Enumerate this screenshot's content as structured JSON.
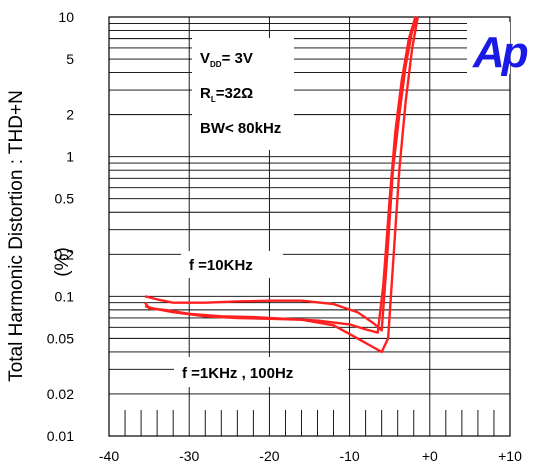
{
  "chart_data": {
    "type": "line",
    "title": "",
    "ylabel": "Total Harmonic Distortion : THD+N",
    "ylabel_unit": "(%)",
    "y_scale": "log",
    "ylim": [
      0.01,
      10
    ],
    "xlim": [
      -40,
      10
    ],
    "x_ticks": [
      {
        "value": -40,
        "label": "-40"
      },
      {
        "value": -30,
        "label": "-30"
      },
      {
        "value": -20,
        "label": "-20"
      },
      {
        "value": -10,
        "label": "-10"
      },
      {
        "value": 0,
        "label": "+0"
      },
      {
        "value": 10,
        "label": "+10"
      }
    ],
    "y_ticks": [
      {
        "value": 10,
        "label": "10"
      },
      {
        "value": 5,
        "label": "5"
      },
      {
        "value": 2,
        "label": "2"
      },
      {
        "value": 1,
        "label": "1"
      },
      {
        "value": 0.5,
        "label": "0.5"
      },
      {
        "value": 0.2,
        "label": "0.2"
      },
      {
        "value": 0.1,
        "label": "0.1"
      },
      {
        "value": 0.05,
        "label": "0.05"
      },
      {
        "value": 0.02,
        "label": "0.02"
      },
      {
        "value": 0.01,
        "label": "0.01"
      }
    ],
    "grid": true,
    "line_color": "#ff2020",
    "series": [
      {
        "x": [
          -35.5,
          -34,
          -32,
          -28,
          -24,
          -20,
          -16,
          -12,
          -9,
          -7,
          -6,
          -5.3,
          -4.6,
          -3.8,
          -3,
          -2.2,
          -1.5
        ],
        "y": [
          0.1,
          0.095,
          0.09,
          0.09,
          0.092,
          0.093,
          0.093,
          0.088,
          0.077,
          0.064,
          0.057,
          0.2,
          0.8,
          2.0,
          4.5,
          8.0,
          10
        ]
      },
      {
        "x": [
          -35.5,
          -35,
          -33,
          -30,
          -26,
          -22,
          -18,
          -14,
          -10,
          -8,
          -6.5,
          -5.8,
          -5,
          -4.3,
          -3.5,
          -2.6,
          -1.8
        ],
        "y": [
          0.09,
          0.082,
          0.08,
          0.075,
          0.072,
          0.071,
          0.069,
          0.067,
          0.063,
          0.058,
          0.055,
          0.12,
          0.5,
          1.5,
          3.5,
          7.0,
          10
        ]
      },
      {
        "x": [
          -35.5,
          -34.5,
          -32,
          -28,
          -24,
          -20,
          -16,
          -12,
          -9,
          -7,
          -6,
          -5.2,
          -4.5,
          -3.8,
          -3,
          -2.2,
          -1.5
        ],
        "y": [
          0.085,
          0.082,
          0.077,
          0.072,
          0.07,
          0.069,
          0.068,
          0.062,
          0.05,
          0.043,
          0.04,
          0.05,
          0.2,
          0.8,
          2.5,
          6.0,
          10
        ]
      }
    ],
    "annotations": {
      "vdd_main": "V",
      "vdd_sub": "DD",
      "vdd_value": "= 3V",
      "rl_main": "R",
      "rl_sub": "L",
      "rl_value": "=32Ω",
      "bw": "BW< 80kHz",
      "f10k": "f =10KHz",
      "f1k": "f =1KHz , 100Hz"
    },
    "logo": "Ap",
    "logo_color": "#1a1ae6"
  }
}
